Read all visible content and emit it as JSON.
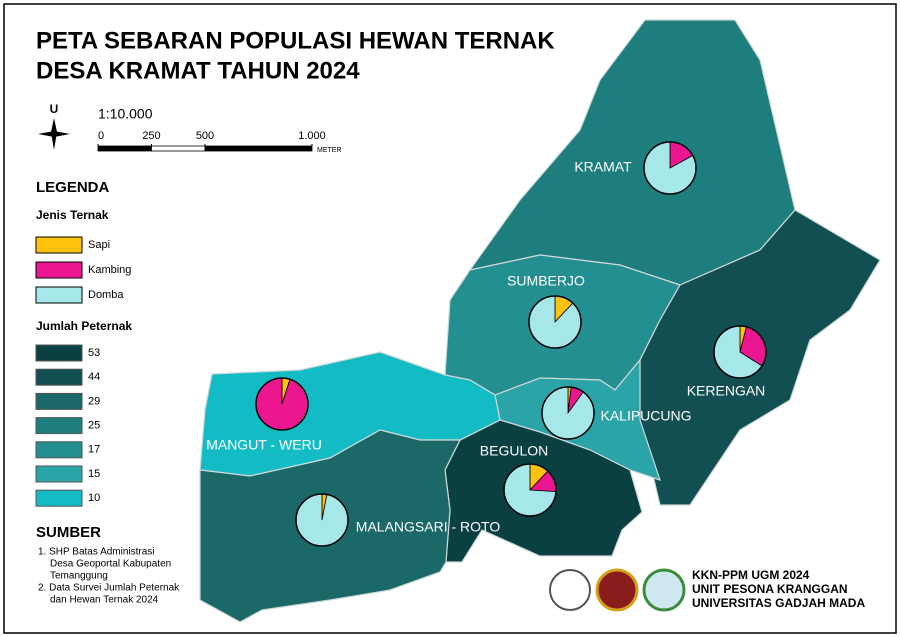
{
  "map": {
    "title": [
      "PETA SEBARAN POPULASI HEWAN TERNAK",
      "DESA KRAMAT TAHUN 2024"
    ],
    "north": "U",
    "scale": {
      "label": "1:10.000",
      "ticks": [
        0,
        250,
        500,
        {
          "value": 1000,
          "label": "1.000"
        }
      ],
      "unit": "METER"
    },
    "legend": {
      "title": "LEGENDA",
      "types_title": "Jenis Ternak",
      "types": [
        {
          "name": "Sapi",
          "color": "#ffc20e"
        },
        {
          "name": "Kambing",
          "color": "#ec1690"
        },
        {
          "name": "Domba",
          "color": "#a6e8ea"
        }
      ],
      "counts_title": "Jumlah Peternak",
      "counts": [
        {
          "value": 53,
          "color": "#0b4042"
        },
        {
          "value": 44,
          "color": "#124f52"
        },
        {
          "value": 29,
          "color": "#1b6868"
        },
        {
          "value": 25,
          "color": "#1e7d7d"
        },
        {
          "value": 17,
          "color": "#248f90"
        },
        {
          "value": 15,
          "color": "#2ba4a7"
        },
        {
          "value": 10,
          "color": "#13bcc4"
        }
      ]
    },
    "regions": [
      {
        "name": "KRAMAT",
        "peternak": 25,
        "shares": [
          0,
          17,
          83
        ]
      },
      {
        "name": "SUMBERJO",
        "peternak": 17,
        "shares": [
          12,
          0,
          88
        ]
      },
      {
        "name": "KERENGAN",
        "peternak": 44,
        "shares": [
          4,
          30,
          66
        ]
      },
      {
        "name": "KALIPUCUNG",
        "peternak": 15,
        "shares": [
          2,
          8,
          90
        ]
      },
      {
        "name": "BEGULON",
        "peternak": 53,
        "shares": [
          12,
          14,
          74
        ]
      },
      {
        "name": "MANGUT - WERU",
        "peternak": 10,
        "shares": [
          5,
          95,
          0
        ]
      },
      {
        "name": "MALANGSARI - ROTO",
        "peternak": 29,
        "shares": [
          3,
          0,
          97
        ]
      }
    ],
    "sources": {
      "title": "SUMBER",
      "items": [
        [
          "1. SHP Batas Administrasi",
          "Desa Geoportal Kabupaten",
          "Temanggung"
        ],
        [
          "2. Data Survei Jumlah Peternak",
          "dan Hewan Ternak 2024"
        ]
      ]
    },
    "footer": [
      "KKN-PPM UGM 2024",
      "UNIT PESONA KRANGGAN",
      "UNIVERSITAS GADJAH MADA"
    ]
  }
}
